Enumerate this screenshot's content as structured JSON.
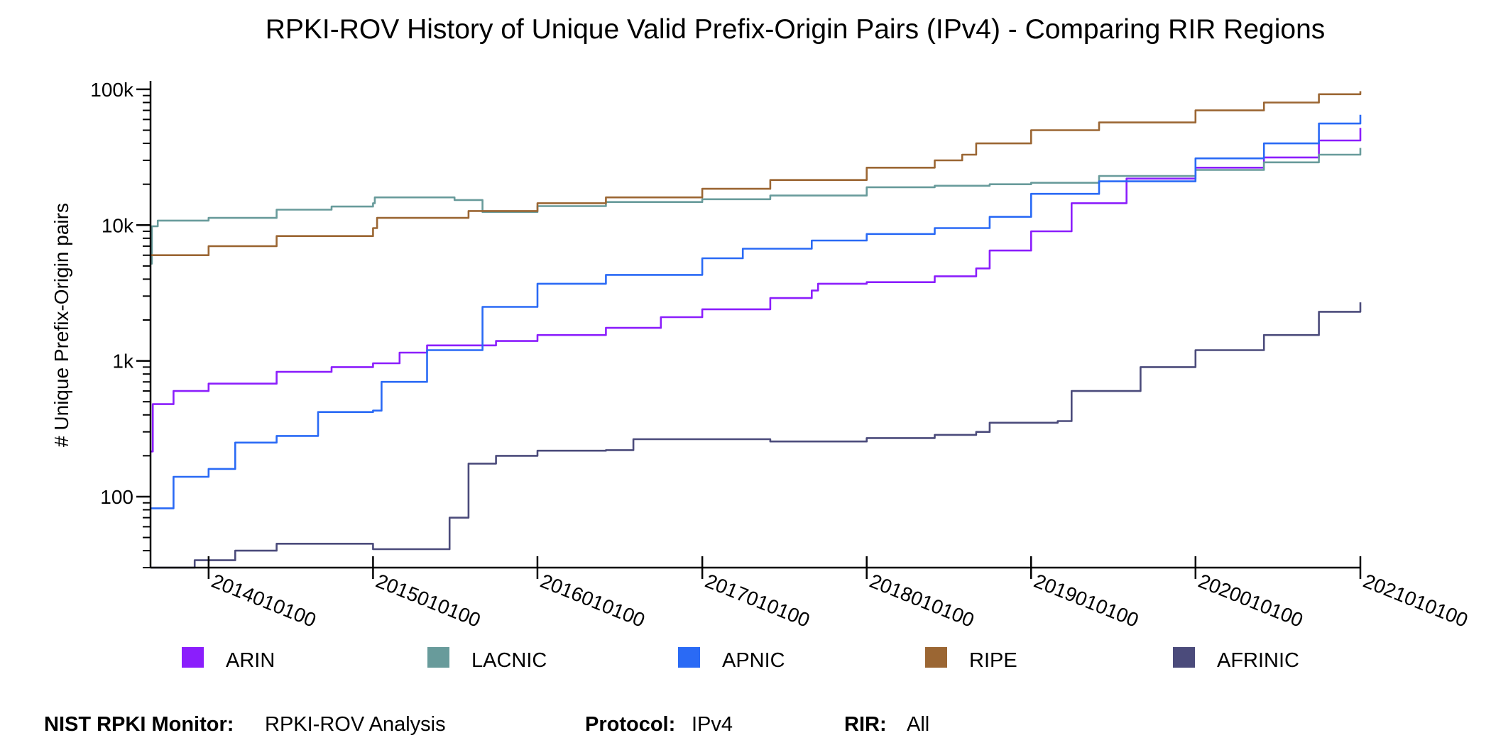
{
  "chart_data": {
    "type": "line",
    "title": "RPKI-ROV History of Unique Valid Prefix-Origin Pairs (IPv4) - Comparing RIR Regions",
    "ylabel": "# Unique Prefix-Origin pairs",
    "xlabel": "",
    "y_scale": "log",
    "ylim": [
      30,
      110000
    ],
    "xlim": [
      "2013-08-25",
      "2021-01-01"
    ],
    "y_ticks": [
      {
        "value": 100,
        "label": "100"
      },
      {
        "value": 1000,
        "label": "1k"
      },
      {
        "value": 10000,
        "label": "10k"
      },
      {
        "value": 100000,
        "label": "100k"
      }
    ],
    "x_ticks": [
      {
        "value": "2014-01-01",
        "label": "2014010100"
      },
      {
        "value": "2015-01-01",
        "label": "2015010100"
      },
      {
        "value": "2016-01-01",
        "label": "2016010100"
      },
      {
        "value": "2017-01-01",
        "label": "2017010100"
      },
      {
        "value": "2018-01-01",
        "label": "2018010100"
      },
      {
        "value": "2019-01-01",
        "label": "2019010100"
      },
      {
        "value": "2020-01-01",
        "label": "2020010100"
      },
      {
        "value": "2021-01-01",
        "label": "2021010100"
      }
    ],
    "legend_position": "bottom",
    "grid": false,
    "series": [
      {
        "name": "ARIN",
        "color": "#8b1efc",
        "points": [
          [
            "2013-08-26",
            215
          ],
          [
            "2013-08-30",
            480
          ],
          [
            "2013-10-15",
            600
          ],
          [
            "2014-01-01",
            680
          ],
          [
            "2014-06-01",
            830
          ],
          [
            "2014-10-01",
            900
          ],
          [
            "2015-01-01",
            960
          ],
          [
            "2015-03-01",
            1150
          ],
          [
            "2015-05-01",
            1300
          ],
          [
            "2015-10-01",
            1400
          ],
          [
            "2016-01-01",
            1550
          ],
          [
            "2016-06-01",
            1750
          ],
          [
            "2016-10-01",
            2100
          ],
          [
            "2017-01-01",
            2400
          ],
          [
            "2017-06-01",
            2900
          ],
          [
            "2017-09-01",
            3300
          ],
          [
            "2017-09-15",
            3700
          ],
          [
            "2018-01-01",
            3800
          ],
          [
            "2018-06-01",
            4200
          ],
          [
            "2018-09-01",
            4800
          ],
          [
            "2018-10-01",
            6500
          ],
          [
            "2019-01-01",
            9000
          ],
          [
            "2019-04-01",
            14500
          ],
          [
            "2019-08-01",
            22000
          ],
          [
            "2020-01-01",
            26500
          ],
          [
            "2020-06-01",
            31500
          ],
          [
            "2020-10-01",
            42000
          ],
          [
            "2021-01-01",
            52000
          ]
        ]
      },
      {
        "name": "LACNIC",
        "color": "#689b9b",
        "points": [
          [
            "2013-08-25",
            5200
          ],
          [
            "2013-08-28",
            9800
          ],
          [
            "2013-09-10",
            10800
          ],
          [
            "2014-01-01",
            11300
          ],
          [
            "2014-06-01",
            13000
          ],
          [
            "2014-10-01",
            13700
          ],
          [
            "2015-01-01",
            14500
          ],
          [
            "2015-01-05",
            16000
          ],
          [
            "2015-07-01",
            15300
          ],
          [
            "2015-09-01",
            12500
          ],
          [
            "2016-01-01",
            13800
          ],
          [
            "2016-06-01",
            14800
          ],
          [
            "2017-01-01",
            15500
          ],
          [
            "2017-06-01",
            16500
          ],
          [
            "2018-01-01",
            19000
          ],
          [
            "2018-06-01",
            19500
          ],
          [
            "2018-10-01",
            20000
          ],
          [
            "2019-01-01",
            20500
          ],
          [
            "2019-06-01",
            23000
          ],
          [
            "2020-01-01",
            25500
          ],
          [
            "2020-06-01",
            29000
          ],
          [
            "2020-10-01",
            33000
          ],
          [
            "2021-01-01",
            37000
          ]
        ]
      },
      {
        "name": "APNIC",
        "color": "#2a6af5",
        "points": [
          [
            "2013-08-25",
            82
          ],
          [
            "2013-10-01",
            82
          ],
          [
            "2013-10-15",
            140
          ],
          [
            "2014-01-01",
            160
          ],
          [
            "2014-03-01",
            250
          ],
          [
            "2014-06-01",
            280
          ],
          [
            "2014-09-01",
            420
          ],
          [
            "2015-01-01",
            430
          ],
          [
            "2015-01-20",
            700
          ],
          [
            "2015-05-01",
            1200
          ],
          [
            "2015-09-01",
            2500
          ],
          [
            "2016-01-01",
            3700
          ],
          [
            "2016-06-01",
            4300
          ],
          [
            "2017-01-01",
            5700
          ],
          [
            "2017-04-01",
            6700
          ],
          [
            "2017-09-01",
            7700
          ],
          [
            "2018-01-01",
            8600
          ],
          [
            "2018-06-01",
            9500
          ],
          [
            "2018-10-01",
            11500
          ],
          [
            "2019-01-01",
            17000
          ],
          [
            "2019-06-01",
            21000
          ],
          [
            "2020-01-01",
            31000
          ],
          [
            "2020-06-01",
            40000
          ],
          [
            "2020-10-01",
            56000
          ],
          [
            "2021-01-01",
            65000
          ]
        ]
      },
      {
        "name": "RIPE",
        "color": "#9b6633",
        "points": [
          [
            "2013-08-25",
            6000
          ],
          [
            "2014-01-01",
            7000
          ],
          [
            "2014-06-01",
            8300
          ],
          [
            "2015-01-01",
            9500
          ],
          [
            "2015-01-10",
            11300
          ],
          [
            "2015-08-01",
            12700
          ],
          [
            "2016-01-01",
            14500
          ],
          [
            "2016-06-01",
            16000
          ],
          [
            "2017-01-01",
            18500
          ],
          [
            "2017-06-01",
            21500
          ],
          [
            "2018-01-01",
            26500
          ],
          [
            "2018-06-01",
            30000
          ],
          [
            "2018-08-01",
            33000
          ],
          [
            "2018-09-01",
            40000
          ],
          [
            "2019-01-01",
            50000
          ],
          [
            "2019-06-01",
            57000
          ],
          [
            "2020-01-01",
            70000
          ],
          [
            "2020-06-01",
            80000
          ],
          [
            "2020-10-01",
            92000
          ],
          [
            "2021-01-01",
            97000
          ]
        ]
      },
      {
        "name": "AFRINIC",
        "color": "#4b4b7b",
        "points": [
          [
            "2013-08-25",
            30
          ],
          [
            "2013-12-01",
            34
          ],
          [
            "2014-03-01",
            40
          ],
          [
            "2014-06-01",
            45
          ],
          [
            "2015-01-01",
            41
          ],
          [
            "2015-06-01",
            41
          ],
          [
            "2015-06-20",
            70
          ],
          [
            "2015-08-01",
            175
          ],
          [
            "2015-10-01",
            200
          ],
          [
            "2016-01-01",
            218
          ],
          [
            "2016-06-01",
            220
          ],
          [
            "2016-08-01",
            265
          ],
          [
            "2017-01-01",
            265
          ],
          [
            "2017-06-01",
            255
          ],
          [
            "2018-01-01",
            270
          ],
          [
            "2018-06-01",
            285
          ],
          [
            "2018-09-01",
            300
          ],
          [
            "2018-10-01",
            350
          ],
          [
            "2019-03-01",
            360
          ],
          [
            "2019-04-01",
            600
          ],
          [
            "2019-09-01",
            900
          ],
          [
            "2020-01-01",
            1200
          ],
          [
            "2020-06-01",
            1550
          ],
          [
            "2020-10-01",
            2300
          ],
          [
            "2021-01-01",
            2700
          ]
        ]
      }
    ]
  },
  "footer": {
    "monitor_label": "NIST RPKI Monitor:",
    "monitor_value": "RPKI-ROV Analysis",
    "protocol_label": "Protocol:",
    "protocol_value": "IPv4",
    "rir_label": "RIR:",
    "rir_value": "All"
  }
}
